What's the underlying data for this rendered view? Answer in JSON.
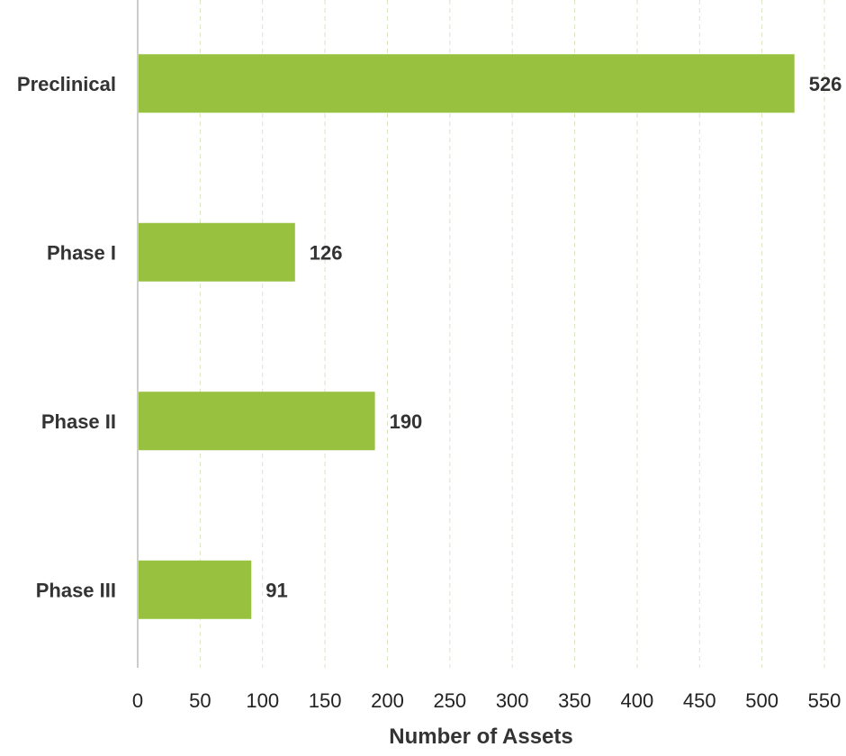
{
  "chart_data": {
    "type": "bar",
    "orientation": "horizontal",
    "categories": [
      "Preclinical",
      "Phase I",
      "Phase II",
      "Phase III"
    ],
    "values": [
      526,
      126,
      190,
      91
    ],
    "value_labels": [
      "526",
      "126",
      "190",
      "91"
    ],
    "title": "",
    "xlabel": "Number of Assets",
    "ylabel": "",
    "xlim": [
      0,
      550
    ],
    "xticks": [
      0,
      50,
      100,
      150,
      200,
      250,
      300,
      350,
      400,
      450,
      500,
      550
    ],
    "xtick_labels": [
      "0",
      "50",
      "100",
      "150",
      "200",
      "250",
      "300",
      "350",
      "400",
      "450",
      "500",
      "550"
    ],
    "grid": true,
    "legend": "none",
    "bar_color": "#97c13f",
    "grid_color": "#d7e6c0"
  }
}
